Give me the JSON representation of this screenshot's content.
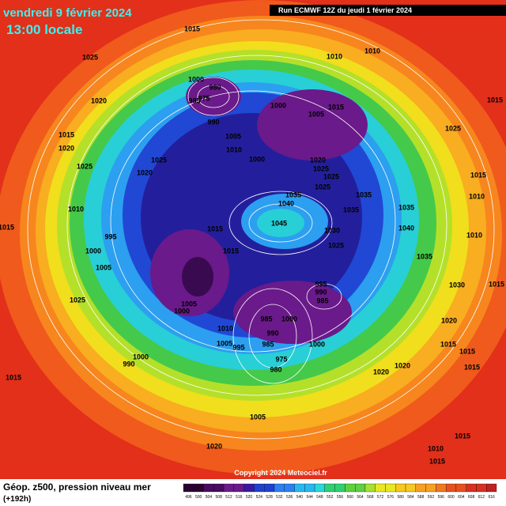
{
  "header": {
    "date": "vendredi 9 février 2024",
    "time": "13:00 locale",
    "run": "Run ECMWF 12Z du jeudi 1 février 2024"
  },
  "footer": {
    "title": "Géop. z500, pression niveau mer",
    "lead": "(+192h)",
    "copyright": "Copyright 2024 Meteociel.fr"
  },
  "colorbar": {
    "labels": [
      "496",
      "500",
      "504",
      "508",
      "512",
      "516",
      "520",
      "524",
      "528",
      "532",
      "536",
      "540",
      "544",
      "548",
      "552",
      "556",
      "560",
      "564",
      "568",
      "572",
      "576",
      "580",
      "584",
      "588",
      "592",
      "596",
      "600",
      "604",
      "608",
      "612",
      "616"
    ]
  },
  "isobar_labels": [
    "1015",
    "1010",
    "1010",
    "1025",
    "1015",
    "1020",
    "980",
    "1000",
    "985",
    "975",
    "990",
    "1000",
    "1015",
    "1005",
    "1005",
    "1010",
    "1025",
    "1020",
    "1015",
    "1025",
    "1025",
    "1020",
    "1000",
    "1020",
    "1025",
    "1025",
    "1025",
    "1015",
    "1010",
    "1035",
    "1040",
    "1035",
    "1035",
    "1035",
    "1045",
    "1030",
    "1040",
    "1010",
    "1015",
    "995",
    "1015",
    "1015",
    "1025",
    "1000",
    "1005",
    "1035",
    "1010",
    "995",
    "990",
    "985",
    "1030",
    "1015",
    "1025",
    "1005",
    "1000",
    "985",
    "1000",
    "1010",
    "990",
    "1005",
    "995",
    "985",
    "1000",
    "1020",
    "1015",
    "1015",
    "1000",
    "990",
    "975",
    "980",
    "1020",
    "1020",
    "1015",
    "1015",
    "1005",
    "1020",
    "1015",
    "1010",
    "1015"
  ]
}
